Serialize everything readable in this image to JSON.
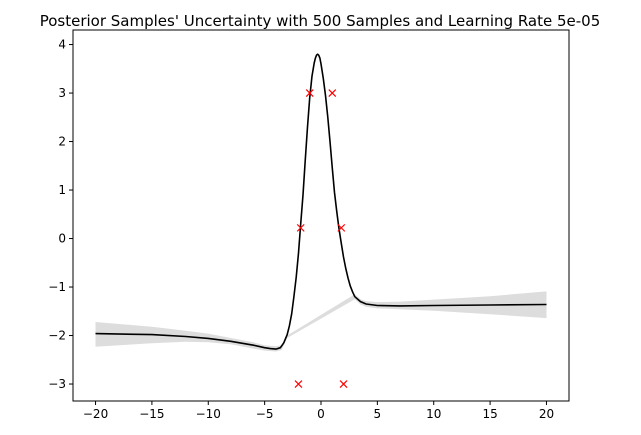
{
  "chart_data": {
    "type": "line",
    "title": "Posterior Samples' Uncertainty with 500 Samples and Learning Rate 5e-05",
    "xlabel": "",
    "ylabel": "",
    "xlim": [
      -22,
      22
    ],
    "ylim": [
      -3.35,
      4.3
    ],
    "grid": false,
    "legend": "none",
    "x_ticks": [
      -20,
      -15,
      -10,
      -5,
      0,
      5,
      10,
      15,
      20
    ],
    "y_ticks": [
      -3,
      -2,
      -1,
      0,
      1,
      2,
      3,
      4
    ],
    "x_tick_labels": [
      "−20",
      "−15",
      "−10",
      "−5",
      "0",
      "5",
      "10",
      "15",
      "20"
    ],
    "y_tick_labels": [
      "−3",
      "−2",
      "−1",
      "0",
      "1",
      "2",
      "3",
      "4"
    ],
    "colors": {
      "mean_line": "#000000",
      "uncertainty_band": "#dddddd",
      "observations": "#ff0000"
    },
    "series": [
      {
        "kind": "mean",
        "x": [
          -20,
          -15,
          -12,
          -10,
          -8,
          -6,
          -5,
          -4.5,
          -4,
          -3.6,
          -3.3,
          -3,
          -2.8,
          -2.6,
          -2.4,
          -2.2,
          -2,
          -1.8,
          -1.6,
          -1.4,
          -1.2,
          -1,
          -0.8,
          -0.6,
          -0.5,
          -0.4,
          -0.3,
          -0.2,
          -0.1,
          0,
          0.2,
          0.4,
          0.6,
          0.8,
          1,
          1.2,
          1.4,
          1.6,
          1.8,
          2,
          2.2,
          2.4,
          2.6,
          2.8,
          3,
          3.5,
          4,
          5,
          7,
          10,
          15,
          20
        ],
        "y": [
          -1.96,
          -1.98,
          -2.02,
          -2.06,
          -2.12,
          -2.2,
          -2.25,
          -2.27,
          -2.28,
          -2.25,
          -2.15,
          -1.98,
          -1.8,
          -1.55,
          -1.2,
          -0.8,
          -0.3,
          0.3,
          0.9,
          1.6,
          2.3,
          2.9,
          3.35,
          3.62,
          3.72,
          3.78,
          3.8,
          3.78,
          3.72,
          3.6,
          3.3,
          2.95,
          2.5,
          2.0,
          1.45,
          0.95,
          0.55,
          0.2,
          -0.1,
          -0.38,
          -0.62,
          -0.82,
          -0.98,
          -1.1,
          -1.2,
          -1.3,
          -1.35,
          -1.38,
          -1.39,
          -1.38,
          -1.37,
          -1.36
        ]
      },
      {
        "kind": "band",
        "x": [
          -20,
          -15,
          -12,
          -10,
          -8,
          -6,
          -5,
          -4,
          -3.5,
          -3,
          3,
          3.5,
          4,
          5,
          7,
          10,
          15,
          20
        ],
        "upper": [
          -1.72,
          -1.82,
          -1.9,
          -1.96,
          -2.05,
          -2.14,
          -2.2,
          -2.22,
          -2.2,
          -2.0,
          -1.15,
          -1.25,
          -1.29,
          -1.31,
          -1.3,
          -1.26,
          -1.19,
          -1.09
        ],
        "lower": [
          -2.23,
          -2.16,
          -2.13,
          -2.14,
          -2.18,
          -2.27,
          -2.31,
          -2.33,
          -2.3,
          -2.05,
          -1.25,
          -1.36,
          -1.41,
          -1.44,
          -1.46,
          -1.49,
          -1.56,
          -1.64
        ]
      }
    ],
    "observations": {
      "x": [
        -1,
        1,
        -1.8,
        1.8,
        -2,
        2
      ],
      "y": [
        3,
        3,
        0.22,
        0.22,
        -3,
        -3
      ]
    }
  }
}
